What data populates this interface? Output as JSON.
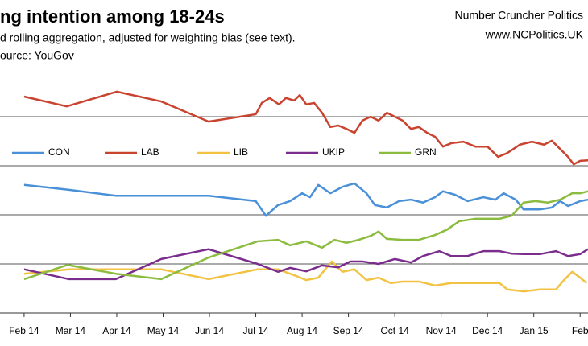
{
  "chart_data": {
    "type": "line",
    "title": "ng intention among 18-24s",
    "subtitle": "d rolling aggregation, adjusted for weighting bias (see text).",
    "source": "ource: YouGov",
    "credit": "Number Cruncher Politics",
    "website": "www.NCPolitics.UK",
    "xlim": [
      -0.52,
      12.17
    ],
    "xticks": [
      {
        "value": 0,
        "label": "Feb 14"
      },
      {
        "value": 1,
        "label": "Mar 14"
      },
      {
        "value": 2,
        "label": "Apr 14"
      },
      {
        "value": 3,
        "label": "May 14"
      },
      {
        "value": 4,
        "label": "Jun 14"
      },
      {
        "value": 5,
        "label": "Jul 14"
      },
      {
        "value": 6,
        "label": "Aug 14"
      },
      {
        "value": 7,
        "label": "Sep 14"
      },
      {
        "value": 8,
        "label": "Oct 14"
      },
      {
        "value": 9,
        "label": "Nov 14"
      },
      {
        "value": 10,
        "label": "Dec 14"
      },
      {
        "value": 11,
        "label": "Jan 15"
      },
      {
        "value": 12,
        "label": "Feb"
      }
    ],
    "ylim": [
      0,
      50
    ],
    "yticks": [
      0,
      10,
      20,
      30,
      40
    ],
    "grid": true,
    "series": [
      {
        "name": "CON",
        "color": "#4a90d9",
        "x": [
          0,
          0.97,
          1.98,
          3.98,
          5,
          5.22,
          5.48,
          5.74,
          6,
          6.17,
          6.35,
          6.61,
          6.87,
          7.13,
          7.39,
          7.57,
          7.83,
          8.09,
          8.35,
          8.61,
          8.87,
          9.04,
          9.3,
          9.57,
          9.91,
          10.17,
          10.35,
          10.61,
          10.78,
          11.13,
          11.39,
          11.57,
          11.74,
          12,
          12.17
        ],
        "values": [
          26.1,
          25.1,
          23.9,
          23.9,
          22.8,
          19.8,
          22,
          22.8,
          24.4,
          23.6,
          26.1,
          24.4,
          25.7,
          26.4,
          24.4,
          22,
          21.5,
          22.8,
          23.1,
          22.5,
          23.6,
          24.8,
          24.1,
          22.8,
          23.6,
          23.1,
          24.4,
          23.1,
          21.1,
          21.1,
          21.5,
          22.8,
          21.8,
          22.8,
          23.1
        ]
      },
      {
        "name": "LAB",
        "color": "#c9432f",
        "x": [
          0,
          0.92,
          2,
          2.96,
          3.98,
          5,
          5.13,
          5.3,
          5.5,
          5.65,
          5.83,
          5.95,
          6.09,
          6.26,
          6.43,
          6.61,
          6.78,
          6.96,
          7.13,
          7.3,
          7.48,
          7.65,
          7.83,
          8,
          8.17,
          8.35,
          8.52,
          8.7,
          8.87,
          9.04,
          9.22,
          9.48,
          9.74,
          10,
          10.23,
          10.43,
          10.7,
          10.96,
          11.22,
          11.39,
          11.57,
          11.74,
          11.86,
          12,
          12.17
        ],
        "values": [
          44.1,
          42.1,
          45.1,
          43.1,
          39,
          40.5,
          42.8,
          43.8,
          42.5,
          43.8,
          43.3,
          44.4,
          42.5,
          42.8,
          40.8,
          37.9,
          38.2,
          37.5,
          36.7,
          39.2,
          40,
          39.2,
          40.8,
          40,
          39.2,
          37.5,
          37.9,
          36.7,
          35.9,
          33.9,
          34.6,
          34.9,
          33.9,
          33.9,
          31.8,
          32.6,
          34.3,
          34.9,
          34.3,
          35.1,
          33.4,
          31.8,
          30.3,
          31,
          31.1
        ]
      },
      {
        "name": "LIB",
        "color": "#f2c242",
        "x": [
          0,
          0.97,
          1.98,
          2.96,
          3.98,
          5.04,
          5.48,
          5.83,
          6.09,
          6.35,
          6.64,
          6.87,
          7.13,
          7.39,
          7.65,
          7.91,
          8.17,
          8.52,
          8.87,
          9.22,
          9.57,
          9.91,
          10.26,
          10.43,
          10.78,
          11.13,
          11.48,
          11.65,
          11.83,
          12,
          12.14
        ],
        "values": [
          8,
          8.9,
          8.9,
          8.9,
          6.9,
          8.9,
          8.9,
          7.7,
          6.7,
          7.2,
          10.5,
          8.4,
          8.9,
          6.7,
          7.2,
          6.1,
          6.4,
          6.4,
          5.6,
          6.1,
          6.1,
          6.1,
          6.1,
          4.8,
          4.4,
          4.8,
          4.8,
          6.7,
          8.4,
          7.2,
          6.1
        ]
      },
      {
        "name": "UKIP",
        "color": "#7b2d8e",
        "x": [
          0,
          0.97,
          1.98,
          2.96,
          3.98,
          5.04,
          5.48,
          5.74,
          6.09,
          6.43,
          6.78,
          7.04,
          7.3,
          7.65,
          8,
          8.35,
          8.61,
          8.96,
          9.22,
          9.57,
          9.91,
          10.26,
          10.52,
          10.78,
          11.13,
          11.48,
          11.74,
          12,
          12.17
        ],
        "values": [
          8.9,
          6.9,
          6.9,
          11,
          13,
          10,
          8.4,
          9.2,
          8.5,
          9.7,
          9.3,
          10.5,
          10.5,
          10,
          11,
          10.3,
          11.6,
          12.6,
          11.6,
          11.6,
          12.6,
          12.6,
          12.1,
          12,
          12,
          12.6,
          11.6,
          12,
          13
        ]
      },
      {
        "name": "GRN",
        "color": "#8cbc3f",
        "x": [
          0,
          0.94,
          1.98,
          2.96,
          3.98,
          5.04,
          5.48,
          5.74,
          6.09,
          6.43,
          6.7,
          6.96,
          7.22,
          7.48,
          7.65,
          7.83,
          8.17,
          8.52,
          8.87,
          9.13,
          9.39,
          9.74,
          10,
          10.26,
          10.52,
          10.78,
          11.04,
          11.3,
          11.57,
          11.83,
          12,
          12.17
        ],
        "values": [
          6.9,
          9.8,
          8,
          6.9,
          11.3,
          14.6,
          14.9,
          13.8,
          14.6,
          13.3,
          14.9,
          14.3,
          14.9,
          15.7,
          16.6,
          15.1,
          14.9,
          14.9,
          15.9,
          17,
          18.7,
          19.2,
          19.2,
          19.2,
          19.8,
          22.5,
          22.8,
          22.5,
          23.1,
          24.4,
          24.4,
          24.8
        ]
      }
    ]
  }
}
